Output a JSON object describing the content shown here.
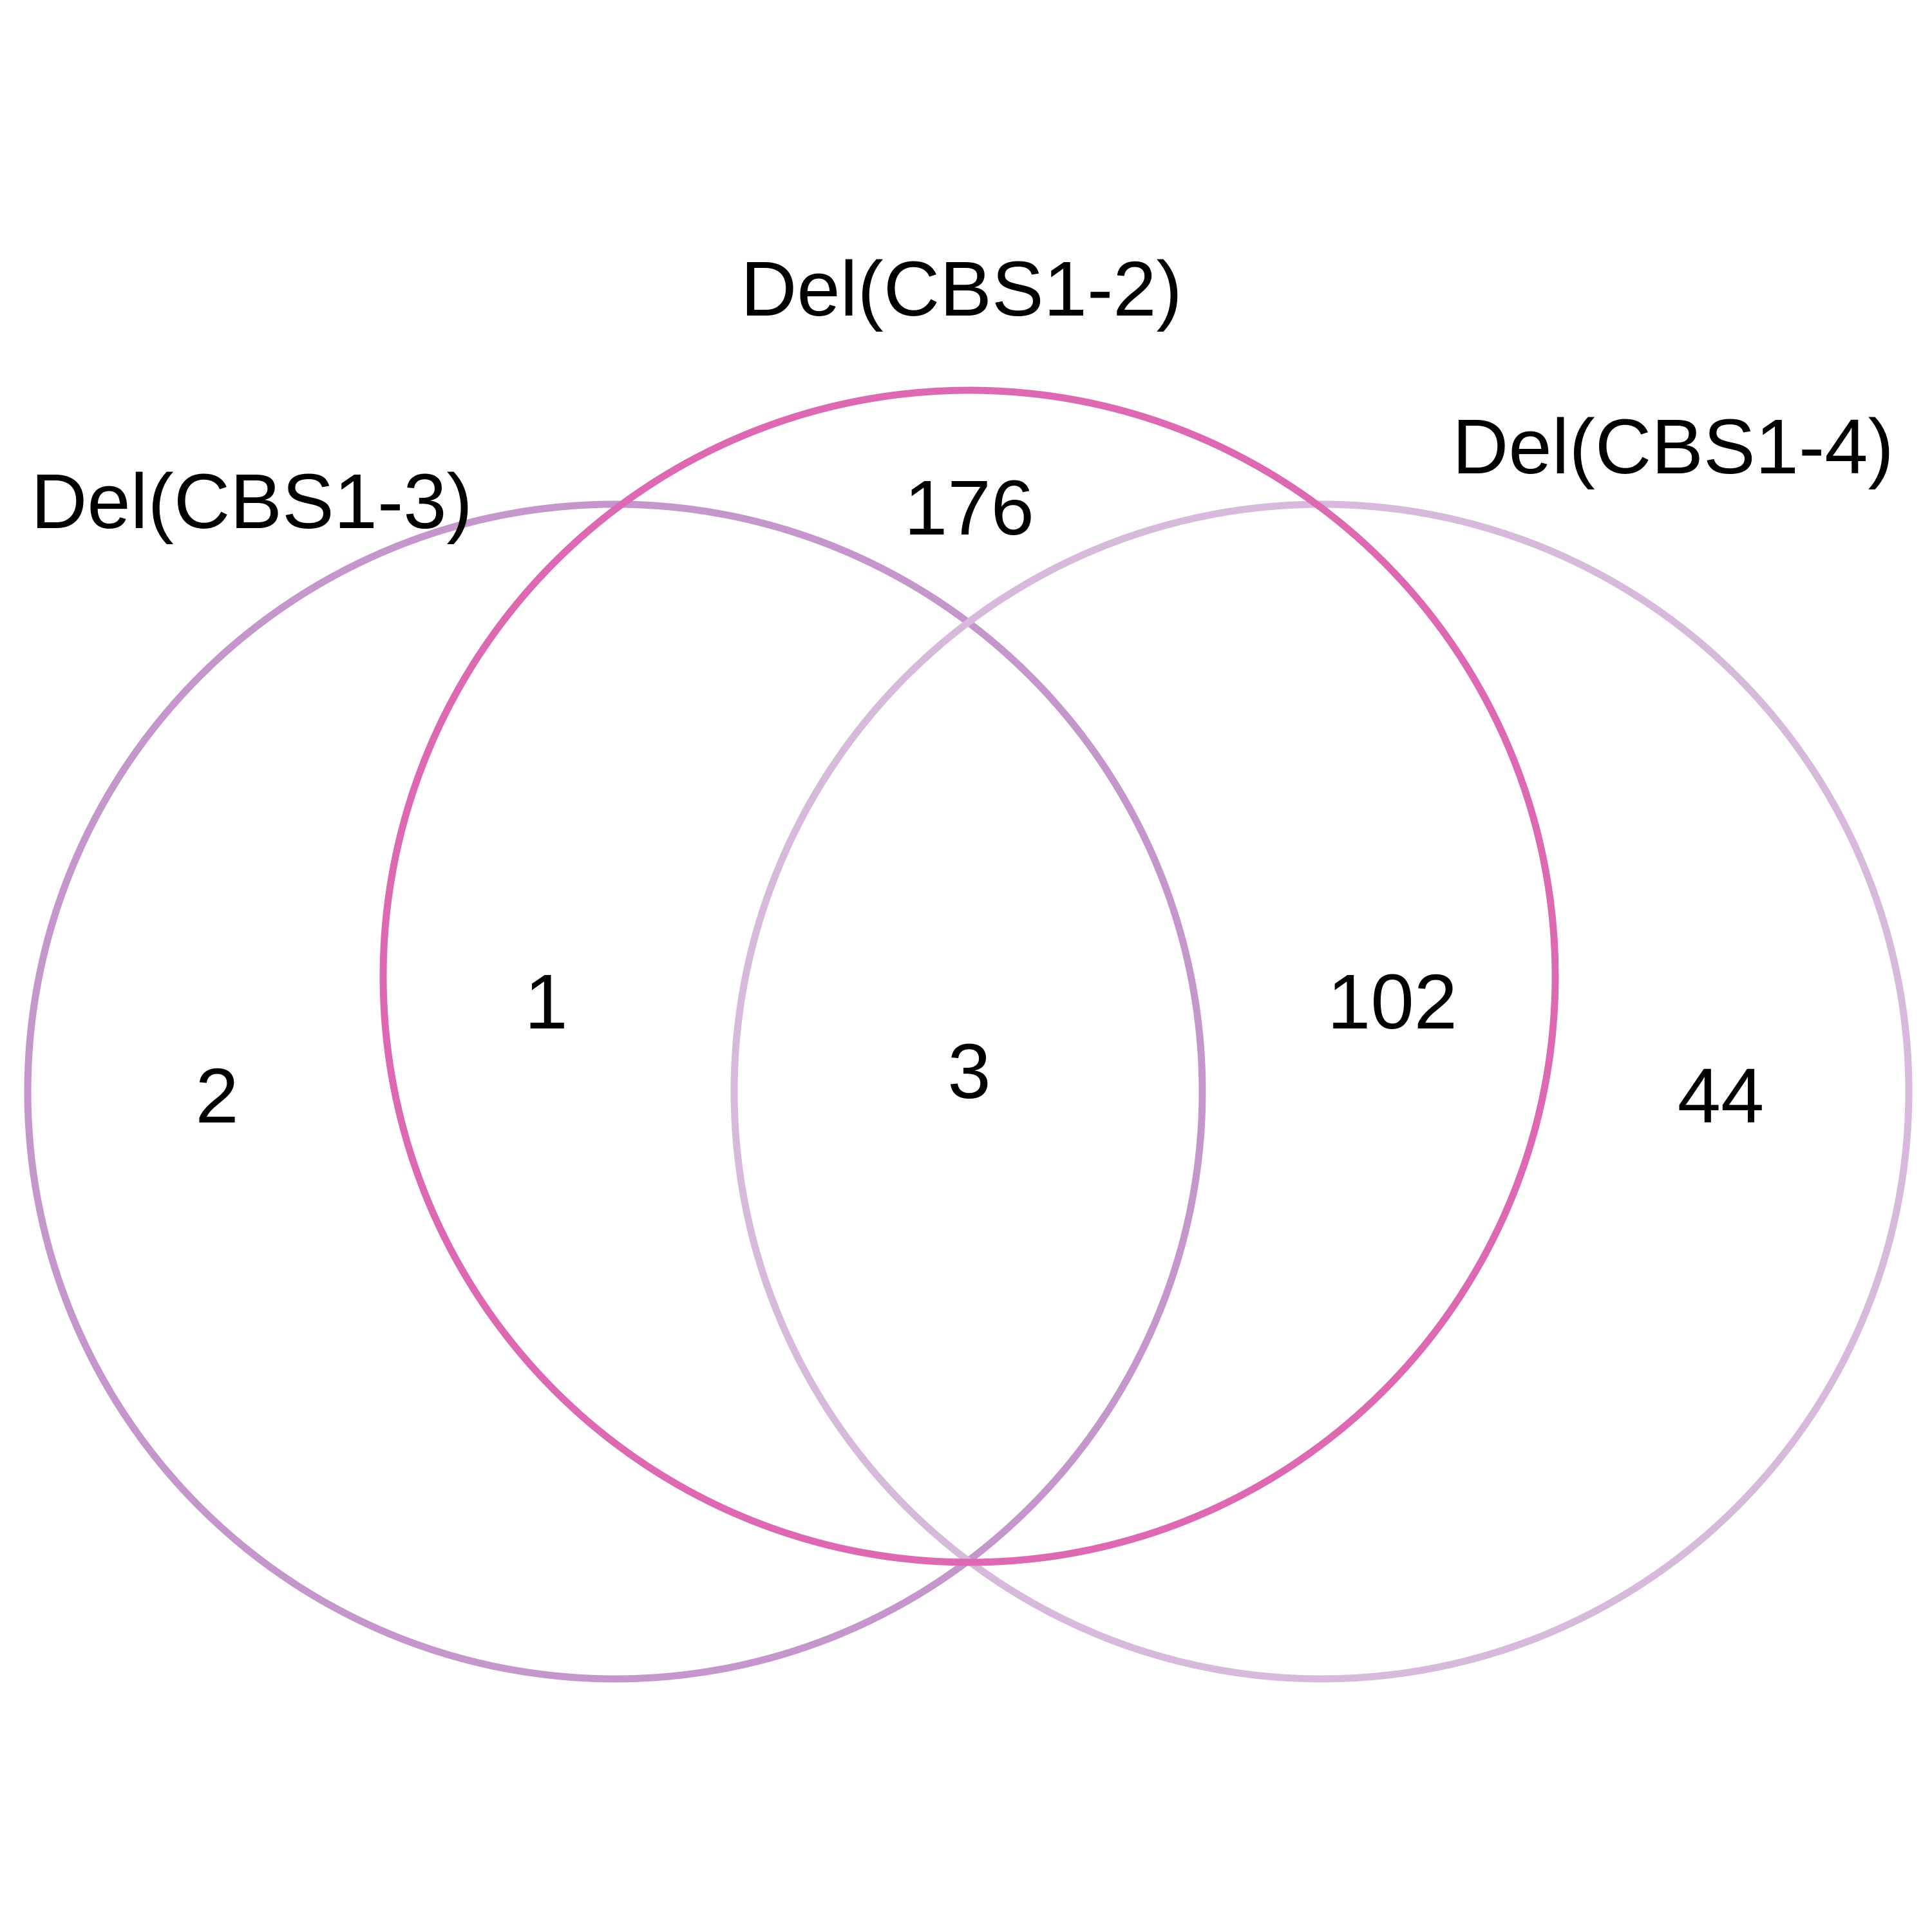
{
  "venn": {
    "sets": [
      {
        "key": "a",
        "name": "Del(CBS1-3)",
        "color": "#C596CB"
      },
      {
        "key": "b",
        "name": "Del(CBS1-2)",
        "color": "#DE69B3"
      },
      {
        "key": "c",
        "name": "Del(CBS1-4)",
        "color": "#D7B9DB"
      }
    ],
    "regions": {
      "only_a": "2",
      "a_and_b": "1",
      "only_b": "176",
      "a_and_b_and_c": "3",
      "b_and_c": "102",
      "only_c": "44"
    }
  }
}
